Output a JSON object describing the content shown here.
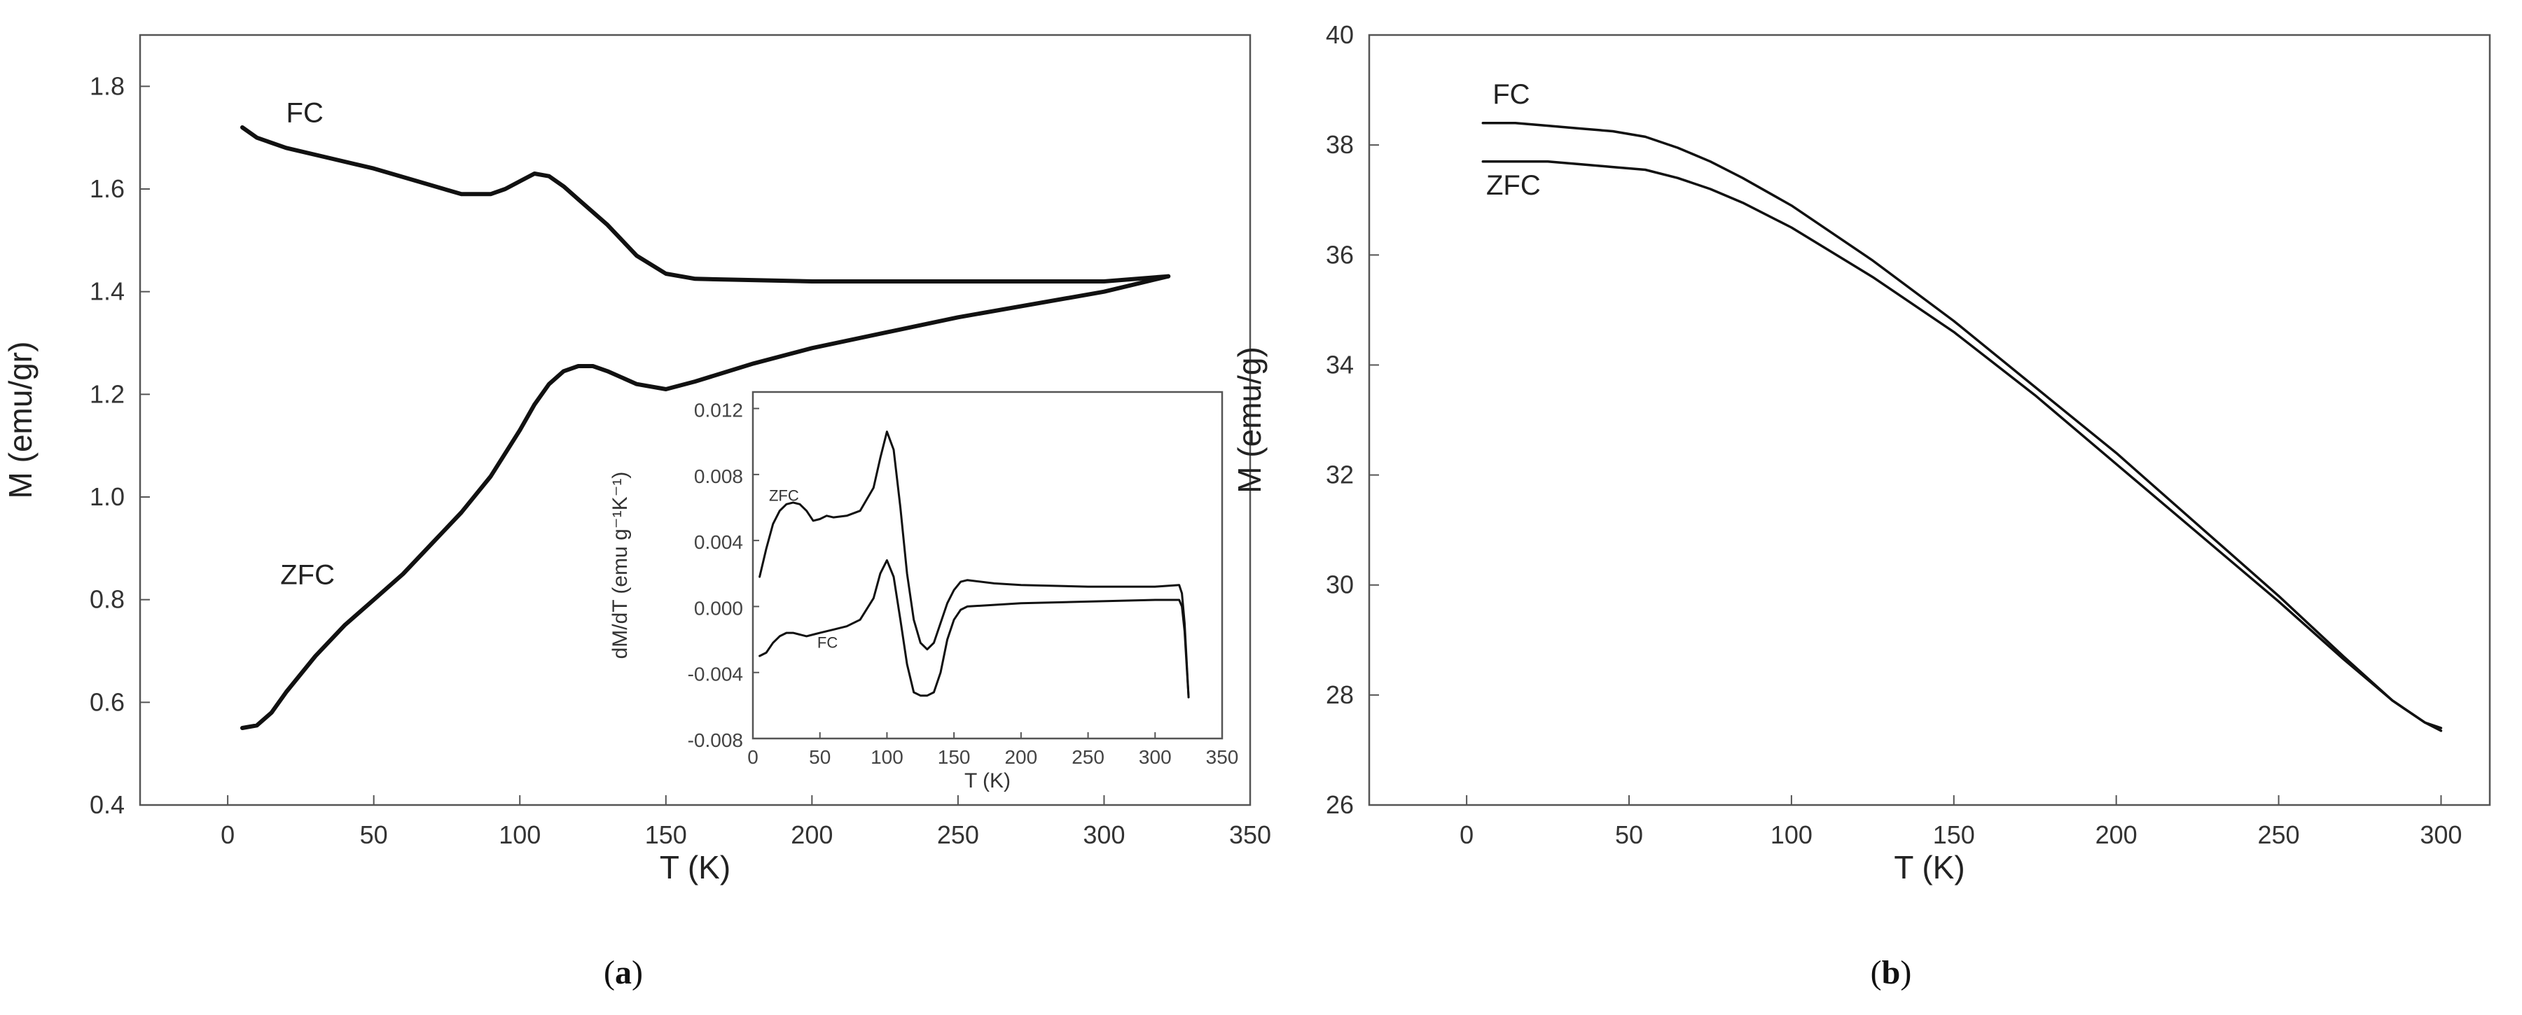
{
  "chart_data": [
    {
      "id": "a",
      "type": "line",
      "panel_label": "a",
      "xlabel": "T (K)",
      "ylabel": "M (emu/gr)",
      "xlim": [
        -30,
        350
      ],
      "ylim": [
        0.4,
        1.9
      ],
      "xticks": [
        0,
        50,
        100,
        150,
        200,
        250,
        300,
        350
      ],
      "xtick_labels": [
        "0",
        "50",
        "100",
        "150",
        "200",
        "250",
        "300",
        "350"
      ],
      "yticks": [
        0.4,
        0.6,
        0.8,
        1.0,
        1.2,
        1.4,
        1.6,
        1.8
      ],
      "ytick_labels": [
        "0.4",
        "0.6",
        "0.8",
        "1.0",
        "1.2",
        "1.4",
        "1.6",
        "1.8"
      ],
      "series": [
        {
          "name": "FC",
          "x": [
            5,
            10,
            20,
            35,
            50,
            65,
            80,
            90,
            95,
            100,
            105,
            110,
            115,
            120,
            130,
            140,
            150,
            160,
            200,
            250,
            300,
            322
          ],
          "y": [
            1.72,
            1.7,
            1.68,
            1.66,
            1.64,
            1.615,
            1.59,
            1.59,
            1.6,
            1.615,
            1.63,
            1.625,
            1.605,
            1.58,
            1.53,
            1.47,
            1.435,
            1.425,
            1.42,
            1.42,
            1.42,
            1.43
          ]
        },
        {
          "name": "ZFC",
          "x": [
            5,
            10,
            15,
            20,
            30,
            40,
            50,
            60,
            70,
            80,
            90,
            100,
            105,
            110,
            115,
            120,
            125,
            130,
            140,
            150,
            160,
            180,
            200,
            250,
            300,
            322
          ],
          "y": [
            0.55,
            0.555,
            0.58,
            0.62,
            0.69,
            0.75,
            0.8,
            0.85,
            0.91,
            0.97,
            1.04,
            1.13,
            1.18,
            1.22,
            1.245,
            1.255,
            1.255,
            1.245,
            1.22,
            1.21,
            1.225,
            1.26,
            1.29,
            1.35,
            1.4,
            1.43
          ]
        }
      ],
      "annotations": [
        {
          "text": "FC",
          "x": 20,
          "y": 1.73
        },
        {
          "text": "ZFC",
          "x": 18,
          "y": 0.83
        }
      ],
      "inset": {
        "type": "line",
        "xlabel": "T (K)",
        "ylabel": "dM/dT (emu g⁻¹K⁻¹)",
        "xlim": [
          0,
          350
        ],
        "ylim": [
          -0.008,
          0.013
        ],
        "xticks": [
          0,
          50,
          100,
          150,
          200,
          250,
          300,
          350
        ],
        "xtick_labels": [
          "0",
          "50",
          "100",
          "150",
          "200",
          "250",
          "300",
          "350"
        ],
        "yticks": [
          -0.008,
          -0.004,
          0.0,
          0.004,
          0.008,
          0.012
        ],
        "ytick_labels": [
          "-0.008",
          "-0.004",
          "0.000",
          "0.004",
          "0.008",
          "0.012"
        ],
        "series": [
          {
            "name": "ZFC",
            "x": [
              5,
              10,
              15,
              20,
              25,
              30,
              35,
              40,
              45,
              50,
              55,
              60,
              70,
              80,
              90,
              95,
              100,
              105,
              110,
              115,
              120,
              125,
              130,
              135,
              140,
              145,
              150,
              155,
              160,
              180,
              200,
              250,
              300,
              318,
              320,
              322,
              325
            ],
            "y": [
              0.0018,
              0.0035,
              0.005,
              0.0058,
              0.0062,
              0.0063,
              0.0062,
              0.0058,
              0.0052,
              0.0053,
              0.0055,
              0.0054,
              0.0055,
              0.0058,
              0.0072,
              0.009,
              0.0106,
              0.0095,
              0.006,
              0.002,
              -0.0008,
              -0.0022,
              -0.0026,
              -0.0022,
              -0.001,
              0.0002,
              0.001,
              0.0015,
              0.0016,
              0.0014,
              0.0013,
              0.0012,
              0.0012,
              0.0013,
              0.0008,
              -0.001,
              -0.0055
            ]
          },
          {
            "name": "FC",
            "x": [
              5,
              10,
              15,
              20,
              25,
              30,
              35,
              40,
              45,
              50,
              60,
              70,
              80,
              90,
              95,
              100,
              105,
              110,
              115,
              120,
              125,
              130,
              135,
              140,
              145,
              150,
              155,
              160,
              180,
              200,
              250,
              300,
              318,
              320,
              322,
              325
            ],
            "y": [
              -0.003,
              -0.0028,
              -0.0022,
              -0.0018,
              -0.0016,
              -0.0016,
              -0.0017,
              -0.0018,
              -0.0017,
              -0.0016,
              -0.0014,
              -0.0012,
              -0.0008,
              0.0005,
              0.002,
              0.0028,
              0.0018,
              -0.0008,
              -0.0035,
              -0.0052,
              -0.0054,
              -0.0054,
              -0.0052,
              -0.004,
              -0.002,
              -0.0008,
              -0.0002,
              0.0,
              0.0001,
              0.0002,
              0.0003,
              0.0004,
              0.0004,
              0.0,
              -0.0015,
              -0.0055
            ]
          }
        ],
        "annotations": [
          {
            "text": "ZFC",
            "x": 12,
            "y": 0.0064
          },
          {
            "text": "FC",
            "x": 48,
            "y": -0.0025
          }
        ]
      }
    },
    {
      "id": "b",
      "type": "line",
      "panel_label": "b",
      "xlabel": "T (K)",
      "ylabel": "M (emu/g)",
      "xlim": [
        -30,
        315
      ],
      "ylim": [
        26,
        40
      ],
      "xticks": [
        0,
        50,
        100,
        150,
        200,
        250,
        300
      ],
      "xtick_labels": [
        "0",
        "50",
        "100",
        "150",
        "200",
        "250",
        "300"
      ],
      "yticks": [
        26,
        28,
        30,
        32,
        34,
        36,
        38,
        40
      ],
      "ytick_labels": [
        "26",
        "28",
        "30",
        "32",
        "34",
        "36",
        "38",
        "40"
      ],
      "series": [
        {
          "name": "FC",
          "x": [
            5,
            15,
            25,
            35,
            45,
            55,
            65,
            75,
            85,
            100,
            125,
            150,
            175,
            200,
            225,
            250,
            270,
            285,
            295,
            300
          ],
          "y": [
            38.4,
            38.4,
            38.35,
            38.3,
            38.25,
            38.15,
            37.95,
            37.7,
            37.4,
            36.9,
            35.9,
            34.8,
            33.6,
            32.4,
            31.1,
            29.8,
            28.7,
            27.9,
            27.5,
            27.35
          ]
        },
        {
          "name": "ZFC",
          "x": [
            5,
            15,
            25,
            35,
            45,
            55,
            65,
            75,
            85,
            100,
            125,
            150,
            175,
            200,
            225,
            250,
            270,
            285,
            295,
            300
          ],
          "y": [
            37.7,
            37.7,
            37.7,
            37.65,
            37.6,
            37.55,
            37.4,
            37.2,
            36.95,
            36.5,
            35.6,
            34.6,
            33.45,
            32.2,
            30.95,
            29.7,
            28.65,
            27.9,
            27.5,
            27.4
          ]
        }
      ],
      "annotations": [
        {
          "text": "FC",
          "x": 8,
          "y": 38.75
        },
        {
          "text": "ZFC",
          "x": 6,
          "y": 37.1
        }
      ]
    }
  ]
}
